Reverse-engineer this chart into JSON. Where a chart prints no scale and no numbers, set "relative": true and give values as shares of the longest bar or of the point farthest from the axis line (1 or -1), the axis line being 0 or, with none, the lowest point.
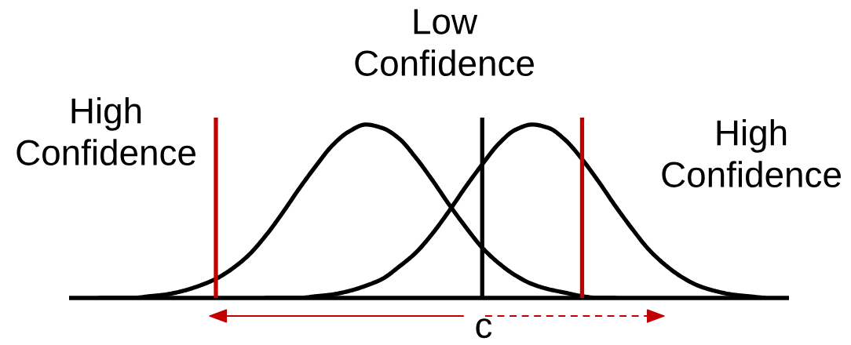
{
  "chart_data": {
    "type": "line",
    "relative": true,
    "line_style": "solid",
    "categories": [
      null,
      null,
      null,
      null,
      null,
      null,
      null,
      null,
      null,
      null,
      null,
      null,
      null,
      null,
      null,
      null,
      null,
      null,
      null,
      null,
      null,
      null,
      null,
      null,
      null,
      null,
      null,
      null,
      null,
      null,
      null,
      null,
      null,
      null,
      null,
      null,
      null,
      null,
      null,
      null,
      null
    ],
    "series": [
      {
        "color": "#000000",
        "values": [
          0.0,
          0.0,
          0.0,
          0.01,
          0.02,
          0.04,
          0.07,
          0.11,
          0.17,
          0.25,
          0.36,
          0.49,
          0.63,
          0.76,
          0.88,
          0.96,
          1.0,
          0.98,
          0.92,
          0.81,
          0.68,
          0.54,
          0.41,
          0.29,
          0.2,
          0.13,
          0.08,
          0.05,
          0.03,
          0.01,
          0.0,
          0.0,
          null,
          null,
          null,
          null,
          null,
          null,
          null,
          null,
          null
        ]
      },
      {
        "color": "#000000",
        "values": [
          null,
          null,
          null,
          null,
          null,
          null,
          null,
          null,
          null,
          null,
          0.0,
          0.0,
          0.0,
          0.01,
          0.02,
          0.04,
          0.07,
          0.11,
          0.18,
          0.26,
          0.37,
          0.5,
          0.64,
          0.77,
          0.89,
          0.97,
          1.0,
          0.98,
          0.91,
          0.8,
          0.67,
          0.53,
          0.4,
          0.28,
          0.19,
          0.12,
          0.07,
          0.04,
          0.02,
          0.01,
          0.0
        ]
      }
    ],
    "annotations": [
      "Low\nConfidence",
      "High\nConfidence",
      "High\nConfidence",
      "c"
    ]
  }
}
